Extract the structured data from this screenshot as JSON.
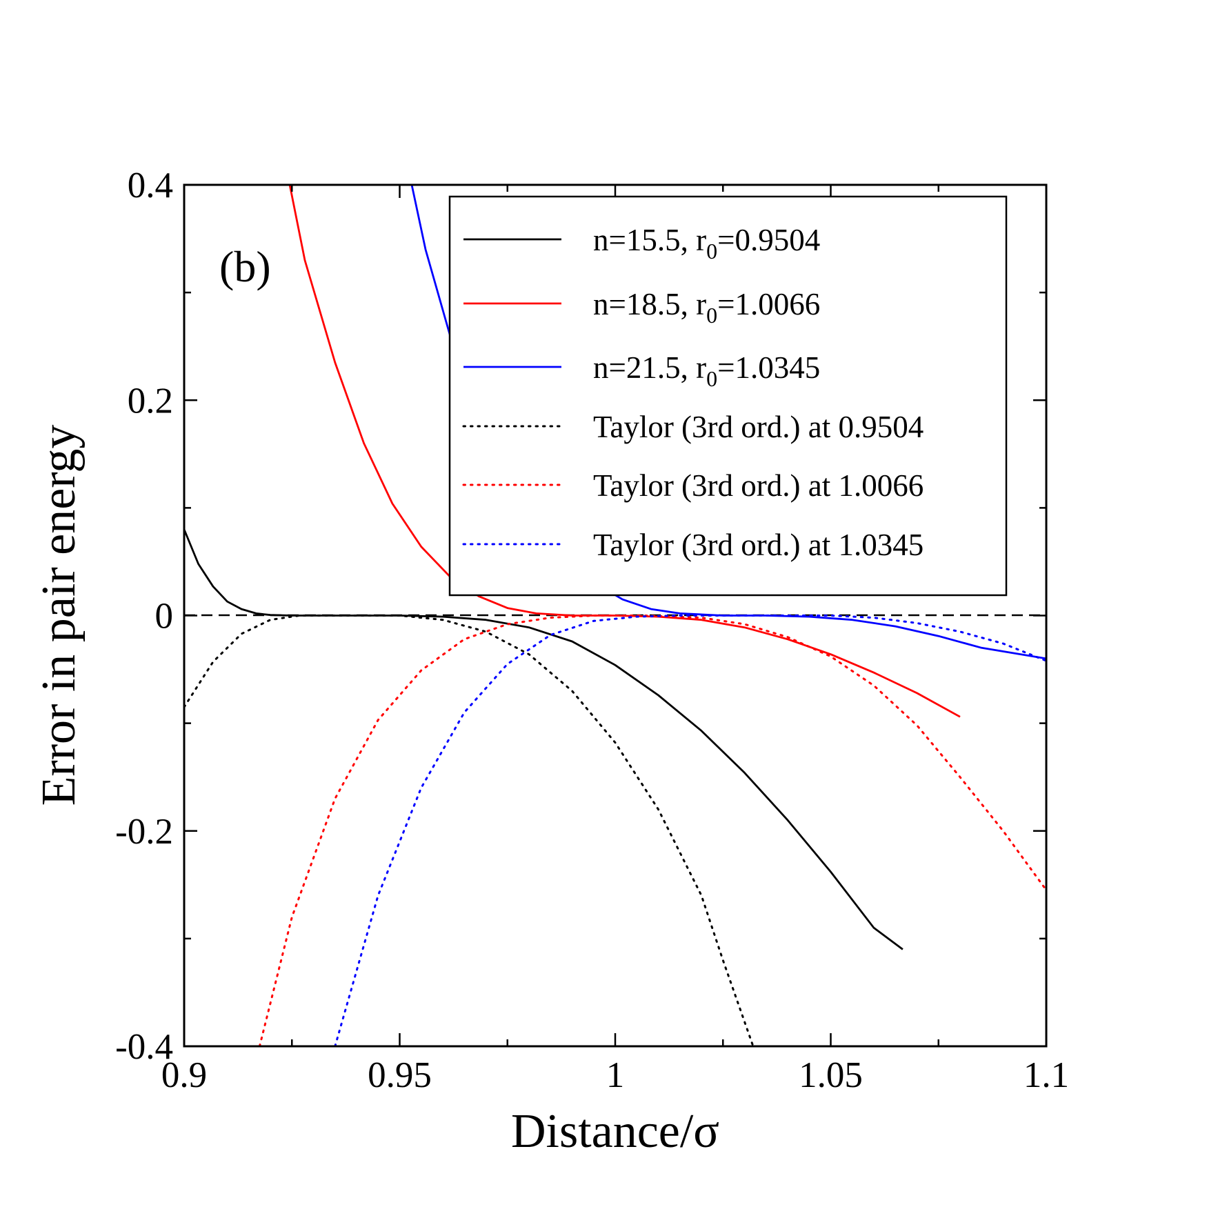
{
  "chart_data": {
    "type": "line",
    "panel_label": "(b)",
    "xlabel": "Distance/σ",
    "ylabel": "Error in pair energy",
    "xlim": [
      0.9,
      1.1
    ],
    "ylim": [
      -0.4,
      0.4
    ],
    "x_ticks": [
      0.9,
      0.95,
      1.0,
      1.05,
      1.1
    ],
    "x_tick_labels": [
      "0.9",
      "0.95",
      "1",
      "1.05",
      "1.1"
    ],
    "y_ticks": [
      -0.4,
      -0.2,
      0.0,
      0.2,
      0.4
    ],
    "y_tick_labels": [
      "-0.4",
      "-0.2",
      "0",
      "0.2",
      "0.4"
    ],
    "x_minor_ticks": [
      0.925,
      0.975,
      1.025,
      1.075
    ],
    "y_minor_ticks": [
      -0.3,
      -0.1,
      0.1,
      0.3
    ],
    "grid": false,
    "legend_position": "top-right",
    "zero_reference_line": {
      "y": 0,
      "style": "dashed",
      "color": "#000000"
    },
    "series": [
      {
        "legend_main": "n=15.5, r",
        "legend_sub": "0",
        "legend_tail": "=0.9504",
        "color": "#000000",
        "style": "solid",
        "points": [
          [
            0.9,
            0.08
          ],
          [
            0.9033,
            0.048
          ],
          [
            0.9067,
            0.027
          ],
          [
            0.91,
            0.013
          ],
          [
            0.9133,
            0.006
          ],
          [
            0.9167,
            0.002
          ],
          [
            0.92,
            0.0005
          ],
          [
            0.925,
            0.0
          ],
          [
            0.93,
            0.0
          ],
          [
            0.95,
            0.0
          ],
          [
            0.96,
            -0.001
          ],
          [
            0.97,
            -0.004
          ],
          [
            0.98,
            -0.011
          ],
          [
            0.99,
            -0.024
          ],
          [
            1.0,
            -0.046
          ],
          [
            1.01,
            -0.074
          ],
          [
            1.02,
            -0.107
          ],
          [
            1.03,
            -0.146
          ],
          [
            1.04,
            -0.19
          ],
          [
            1.05,
            -0.238
          ],
          [
            1.06,
            -0.29
          ],
          [
            1.0667,
            -0.31
          ]
        ]
      },
      {
        "legend_main": "n=18.5, r",
        "legend_sub": "0",
        "legend_tail": "=1.0066",
        "color": "#ff0000",
        "style": "solid",
        "points": [
          [
            0.9245,
            0.4
          ],
          [
            0.928,
            0.33
          ],
          [
            0.935,
            0.235
          ],
          [
            0.9417,
            0.16
          ],
          [
            0.9483,
            0.104
          ],
          [
            0.955,
            0.064
          ],
          [
            0.9617,
            0.036
          ],
          [
            0.9683,
            0.018
          ],
          [
            0.975,
            0.007
          ],
          [
            0.9817,
            0.002
          ],
          [
            0.99,
            0.0
          ],
          [
            1.0,
            0.0
          ],
          [
            1.01,
            -0.001
          ],
          [
            1.02,
            -0.004
          ],
          [
            1.03,
            -0.011
          ],
          [
            1.04,
            -0.022
          ],
          [
            1.05,
            -0.036
          ],
          [
            1.06,
            -0.053
          ],
          [
            1.07,
            -0.072
          ],
          [
            1.08,
            -0.094
          ]
        ]
      },
      {
        "legend_main": "n=21.5, r",
        "legend_sub": "0",
        "legend_tail": "=1.0345",
        "color": "#0000ff",
        "style": "solid",
        "points": [
          [
            0.9528,
            0.4
          ],
          [
            0.956,
            0.34
          ],
          [
            0.9617,
            0.26
          ],
          [
            0.9683,
            0.19
          ],
          [
            0.975,
            0.133
          ],
          [
            0.9817,
            0.088
          ],
          [
            0.9883,
            0.055
          ],
          [
            0.995,
            0.031
          ],
          [
            1.0017,
            0.015
          ],
          [
            1.0083,
            0.006
          ],
          [
            1.015,
            0.002
          ],
          [
            1.025,
            0.0
          ],
          [
            1.035,
            0.0
          ],
          [
            1.045,
            -0.001
          ],
          [
            1.055,
            -0.004
          ],
          [
            1.065,
            -0.01
          ],
          [
            1.075,
            -0.019
          ],
          [
            1.085,
            -0.03
          ],
          [
            1.1,
            -0.04
          ]
        ]
      },
      {
        "legend_main": "Taylor (3rd ord.) at 0.9504",
        "legend_sub": "",
        "legend_tail": "",
        "color": "#000000",
        "style": "dotted",
        "points": [
          [
            0.9,
            -0.085
          ],
          [
            0.9067,
            -0.043
          ],
          [
            0.9133,
            -0.017
          ],
          [
            0.92,
            -0.004
          ],
          [
            0.9267,
            0.0
          ],
          [
            0.9333,
            0.0
          ],
          [
            0.95,
            0.0
          ],
          [
            0.96,
            -0.004
          ],
          [
            0.97,
            -0.015
          ],
          [
            0.98,
            -0.036
          ],
          [
            0.99,
            -0.07
          ],
          [
            1.0,
            -0.118
          ],
          [
            1.01,
            -0.18
          ],
          [
            1.02,
            -0.26
          ],
          [
            1.025,
            -0.32
          ],
          [
            1.032,
            -0.4
          ]
        ]
      },
      {
        "legend_main": "Taylor (3rd ord.) at 1.0066",
        "legend_sub": "",
        "legend_tail": "",
        "color": "#ff0000",
        "style": "dotted",
        "points": [
          [
            0.9175,
            -0.4
          ],
          [
            0.925,
            -0.28
          ],
          [
            0.935,
            -0.17
          ],
          [
            0.945,
            -0.097
          ],
          [
            0.955,
            -0.051
          ],
          [
            0.965,
            -0.022
          ],
          [
            0.975,
            -0.008
          ],
          [
            0.985,
            -0.002
          ],
          [
            0.995,
            0.0
          ],
          [
            1.0066,
            0.0
          ],
          [
            1.02,
            -0.002
          ],
          [
            1.03,
            -0.008
          ],
          [
            1.04,
            -0.02
          ],
          [
            1.05,
            -0.038
          ],
          [
            1.06,
            -0.065
          ],
          [
            1.07,
            -0.102
          ],
          [
            1.08,
            -0.15
          ],
          [
            1.09,
            -0.2
          ],
          [
            1.1,
            -0.255
          ]
        ]
      },
      {
        "legend_main": "Taylor (3rd ord.) at 1.0345",
        "legend_sub": "",
        "legend_tail": "",
        "color": "#0000ff",
        "style": "dotted",
        "points": [
          [
            0.935,
            -0.4
          ],
          [
            0.945,
            -0.26
          ],
          [
            0.955,
            -0.16
          ],
          [
            0.965,
            -0.09
          ],
          [
            0.975,
            -0.045
          ],
          [
            0.985,
            -0.018
          ],
          [
            0.995,
            -0.005
          ],
          [
            1.005,
            -0.001
          ],
          [
            1.015,
            0.0
          ],
          [
            1.0345,
            0.0
          ],
          [
            1.05,
            0.0
          ],
          [
            1.06,
            -0.002
          ],
          [
            1.07,
            -0.007
          ],
          [
            1.08,
            -0.015
          ],
          [
            1.09,
            -0.026
          ],
          [
            1.1,
            -0.042
          ]
        ]
      }
    ]
  }
}
